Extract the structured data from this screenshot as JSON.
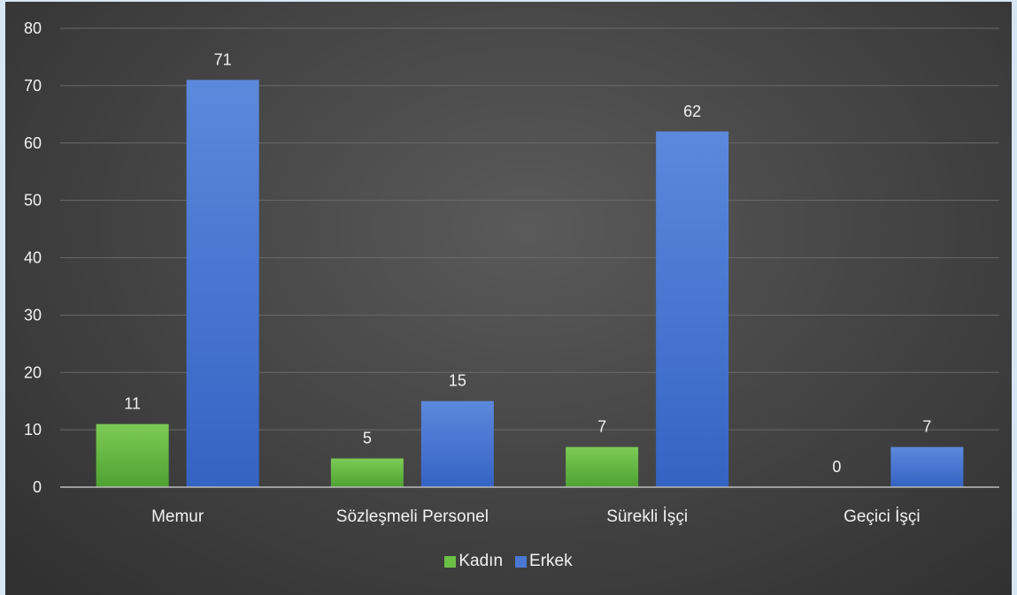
{
  "chart_data": {
    "type": "bar",
    "categories": [
      "Memur",
      "Sözleşmeli Personel",
      "Sürekli İşçi",
      "Geçici İşçi"
    ],
    "series": [
      {
        "name": "Kadın",
        "values": [
          11,
          5,
          7,
          0
        ],
        "color": "#6cbf45"
      },
      {
        "name": "Erkek",
        "values": [
          71,
          15,
          62,
          7
        ],
        "color": "#4a78d4"
      }
    ],
    "ylim": [
      0,
      80
    ],
    "yticks": [
      0,
      10,
      20,
      30,
      40,
      50,
      60,
      70,
      80
    ],
    "grid": true,
    "legend_position": "bottom"
  }
}
